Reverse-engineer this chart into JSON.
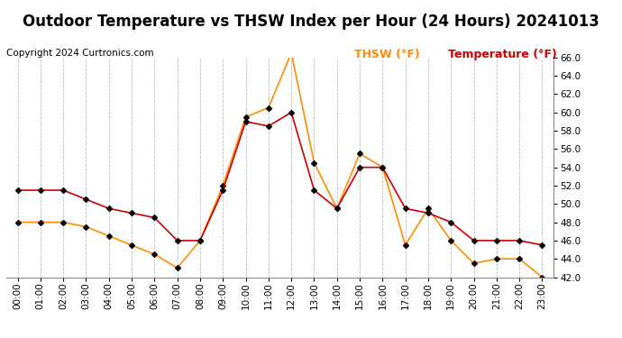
{
  "title": "Outdoor Temperature vs THSW Index per Hour (24 Hours) 20241013",
  "copyright": "Copyright 2024 Curtronics.com",
  "legend_thsw": "THSW (°F)",
  "legend_temp": "Temperature (°F)",
  "hours": [
    "00:00",
    "01:00",
    "02:00",
    "03:00",
    "04:00",
    "05:00",
    "06:00",
    "07:00",
    "08:00",
    "09:00",
    "10:00",
    "11:00",
    "12:00",
    "13:00",
    "14:00",
    "15:00",
    "16:00",
    "17:00",
    "18:00",
    "19:00",
    "20:00",
    "21:00",
    "22:00",
    "23:00"
  ],
  "temperature": [
    51.5,
    51.5,
    51.5,
    50.5,
    49.5,
    49.0,
    48.5,
    46.0,
    46.0,
    51.5,
    59.0,
    58.5,
    60.0,
    51.5,
    49.5,
    54.0,
    54.0,
    49.5,
    49.0,
    48.0,
    46.0,
    46.0,
    46.0,
    45.5
  ],
  "thsw": [
    48.0,
    48.0,
    48.0,
    47.5,
    46.5,
    45.5,
    44.5,
    43.0,
    46.0,
    52.0,
    59.5,
    60.5,
    66.5,
    54.5,
    49.5,
    55.5,
    54.0,
    45.5,
    49.5,
    46.0,
    43.5,
    44.0,
    44.0,
    42.0
  ],
  "temp_color": "#cc0000",
  "thsw_color": "#ff8c00",
  "marker": "D",
  "marker_size": 3,
  "ylim_min": 42.0,
  "ylim_max": 66.0,
  "ytick_step": 2.0,
  "background_color": "#ffffff",
  "grid_color": "#bbbbbb",
  "title_fontsize": 12,
  "copyright_fontsize": 7.5,
  "legend_fontsize": 9,
  "tick_fontsize": 7.5
}
